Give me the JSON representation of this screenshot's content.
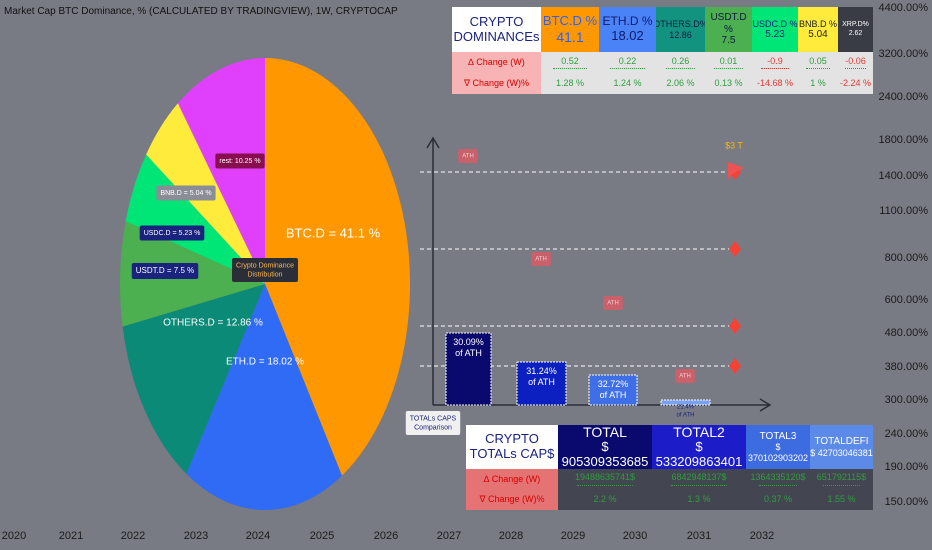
{
  "header": {
    "title": "Market Cap BTC Dominance, % (CALCULATED BY TRADINGVIEW), 1W, CRYPTOCAP"
  },
  "chart_data": {
    "type": "pie",
    "values": [
      41.1,
      18.02,
      12.86,
      7.5,
      5.23,
      5.04,
      10.25
    ],
    "value_labels": [
      "BTC.D = 41.1 %",
      "ETH.D = 18.02 %",
      "OTHERS.D = 12.86 %",
      "USDT.D = 7.5 %",
      "USDC.D = 5.23 %",
      "BNB.D = 5.04 %",
      "rest: 10.25 %"
    ],
    "colors": [
      "#ff9800",
      "#2f6bf5",
      "#0b8a78",
      "#4caf50",
      "#00e676",
      "#ffeb3b",
      "#e040fb"
    ]
  },
  "pie_caption": [
    "Crypto Dominance",
    "Distribution"
  ],
  "dominance_table": {
    "title": [
      "CRYPTO",
      "DOMINANCEs"
    ],
    "columns": [
      {
        "name": "BTC.D %",
        "value": "41.1"
      },
      {
        "name": "ETH.D %",
        "value": "18.02"
      },
      {
        "name": "OTHERS.D%",
        "value": "12.86"
      },
      {
        "name": "USDT.D %",
        "value": "7.5"
      },
      {
        "name": "USDC.D %",
        "value": "5.23"
      },
      {
        "name": "BNB.D %",
        "value": "5.04"
      },
      {
        "name": "XRP.D%",
        "value": "2.62"
      }
    ],
    "rows": [
      {
        "label": "∆ Change (W)",
        "values": [
          "0.52",
          "0.22",
          "0.26",
          "0.01",
          "-0.9",
          "0.05",
          "-0.06"
        ]
      },
      {
        "label": "∇ Change (W)%",
        "values": [
          "1.28 %",
          "1.24 %",
          "2.06 %",
          "0.13 %",
          "-14.68 %",
          "1 %",
          "-2.24 %"
        ]
      }
    ]
  },
  "totals_table": {
    "title": [
      "CRYPTO",
      "TOTALs CAP$"
    ],
    "columns": [
      {
        "name": "TOTAL",
        "value": "$ 905309353685"
      },
      {
        "name": "TOTAL2",
        "value": "$ 533209863401"
      },
      {
        "name": "TOTAL3",
        "value": "$ 370102903202"
      },
      {
        "name": "TOTALDEFI",
        "value": "$ 42703046381"
      }
    ],
    "rows": [
      {
        "label": "∆ Change (W)",
        "values": [
          "19488635741$",
          "6842948137$",
          "1364335120$",
          "651792115$"
        ]
      },
      {
        "label": "∇ Change (W)%",
        "values": [
          "2.2 %",
          "1.3 %",
          "0.37 %",
          "1.55 %"
        ]
      }
    ]
  },
  "ath_chart": {
    "bars": [
      [
        "30.09%",
        "of ATH"
      ],
      [
        "31.24%",
        "of ATH"
      ],
      [
        "32.72%",
        "of ATH"
      ],
      [
        "21.4%",
        "of ATH"
      ]
    ],
    "ath_labels": [
      "ATH",
      "ATH",
      "ATH",
      "ATH"
    ],
    "target_label": "$3 T",
    "caption": [
      "TOTALs CAPS",
      "Comparison"
    ]
  },
  "price_axis": [
    "4400.00%",
    "3200.00%",
    "2400.00%",
    "1800.00%",
    "1400.00%",
    "1100.00%",
    "800.00%",
    "600.00%",
    "480.00%",
    "380.00%",
    "300.00%",
    "240.00%",
    "190.00%",
    "150.00%"
  ],
  "time_axis": [
    "2020",
    "2021",
    "2022",
    "2023",
    "2024",
    "2025",
    "2026",
    "2027",
    "2028",
    "2029",
    "2030",
    "2031",
    "2032"
  ]
}
